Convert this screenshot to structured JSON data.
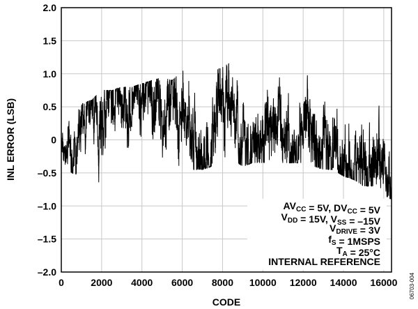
{
  "chart_data": {
    "type": "line",
    "xlabel": "CODE",
    "ylabel": "INL ERROR (LSB)",
    "xlim": [
      0,
      16384
    ],
    "ylim": [
      -2.0,
      2.0
    ],
    "xticks": [
      "0",
      "2000",
      "4000",
      "6000",
      "8000",
      "10000",
      "12000",
      "14000",
      "16000"
    ],
    "yticks": [
      "2.0",
      "1.5",
      "1.0",
      "0.5",
      "0",
      "–0.5",
      "–1.0",
      "–1.5",
      "–2.0"
    ],
    "grid": true,
    "envelope": {
      "x": [
        0,
        500,
        1000,
        1500,
        2000,
        2500,
        3000,
        3500,
        4000,
        4500,
        5000,
        5500,
        6000,
        6500,
        7000,
        7500,
        8000,
        8500,
        9000,
        9500,
        10000,
        10500,
        11000,
        11500,
        12000,
        12500,
        13000,
        13500,
        14000,
        14500,
        15000,
        15500,
        16000,
        16383
      ],
      "max": [
        0.25,
        0.4,
        0.55,
        0.6,
        0.75,
        0.75,
        0.8,
        0.8,
        0.85,
        0.9,
        0.95,
        0.9,
        1.05,
        1.0,
        1.0,
        1.05,
        1.1,
        1.2,
        1.1,
        1.05,
        1.0,
        1.0,
        1.05,
        1.0,
        1.0,
        0.95,
        0.9,
        0.95,
        0.9,
        0.85,
        0.8,
        0.75,
        0.55,
        0.1
      ],
      "min": [
        -0.3,
        -0.5,
        -0.55,
        -0.5,
        -0.7,
        -0.55,
        -0.5,
        -0.45,
        -0.5,
        -0.45,
        -0.45,
        -0.5,
        -0.4,
        -0.45,
        -0.45,
        -0.4,
        -0.35,
        -0.3,
        -0.4,
        -0.35,
        -0.35,
        -0.3,
        -0.35,
        -0.35,
        -0.35,
        -0.4,
        -0.45,
        -0.45,
        -0.55,
        -0.6,
        -0.7,
        -0.7,
        -0.85,
        -0.9
      ]
    },
    "annotation": [
      {
        "parts": [
          {
            "t": "AV"
          },
          {
            "t": "CC",
            "sub": true
          },
          {
            "t": " = 5V, DV"
          },
          {
            "t": "CC",
            "sub": true
          },
          {
            "t": " = 5V"
          }
        ]
      },
      {
        "parts": [
          {
            "t": "V"
          },
          {
            "t": "DD",
            "sub": true
          },
          {
            "t": " = 15V, V"
          },
          {
            "t": "SS",
            "sub": true
          },
          {
            "t": " = –15V"
          }
        ]
      },
      {
        "parts": [
          {
            "t": "V"
          },
          {
            "t": "DRIVE",
            "sub": true
          },
          {
            "t": " = 3V"
          }
        ]
      },
      {
        "parts": [
          {
            "t": "f"
          },
          {
            "t": "S",
            "sub": true
          },
          {
            "t": " = 1MSPS"
          }
        ]
      },
      {
        "parts": [
          {
            "t": "T"
          },
          {
            "t": "A",
            "sub": true
          },
          {
            "t": " = 25°C"
          }
        ]
      },
      {
        "parts": [
          {
            "t": "INTERNAL REFERENCE"
          }
        ]
      }
    ],
    "figure_id": "06703-004"
  }
}
